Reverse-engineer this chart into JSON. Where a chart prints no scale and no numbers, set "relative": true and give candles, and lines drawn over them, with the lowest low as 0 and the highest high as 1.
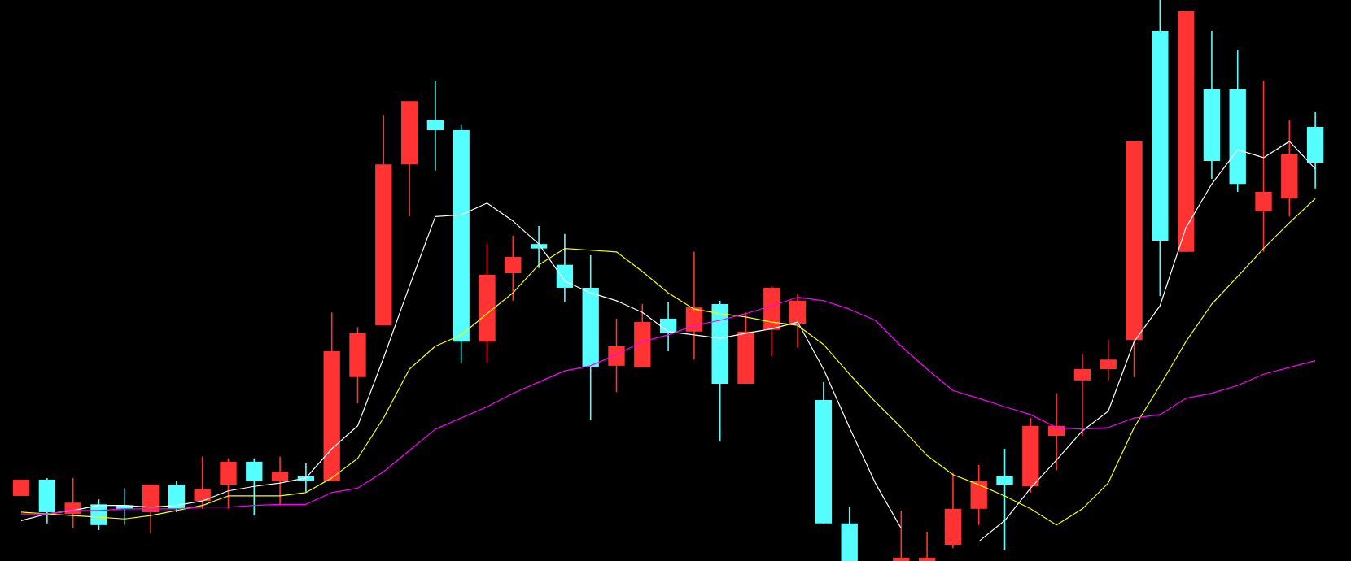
{
  "chart_data": {
    "type": "candlestick",
    "relative": true,
    "categories": [
      null,
      null,
      null,
      null,
      null,
      null,
      null,
      null,
      null,
      null,
      null,
      null,
      null,
      null,
      null,
      null,
      null,
      null,
      null,
      null,
      null,
      null,
      null,
      null,
      null,
      null,
      null,
      null,
      null,
      null,
      null,
      null,
      null,
      null,
      null,
      null,
      null,
      null,
      null,
      null,
      null,
      null,
      null,
      null,
      null,
      null,
      null,
      null,
      null,
      null,
      null
    ],
    "ohlc": [
      [
        0.116,
        0.145,
        0.116,
        0.145
      ],
      [
        0.145,
        0.148,
        0.067,
        0.087
      ],
      [
        0.084,
        0.148,
        0.058,
        0.104
      ],
      [
        0.101,
        0.11,
        0.055,
        0.064
      ],
      [
        0.099,
        0.13,
        0.064,
        0.093
      ],
      [
        0.087,
        0.136,
        0.049,
        0.136
      ],
      [
        0.136,
        0.142,
        0.087,
        0.093
      ],
      [
        0.107,
        0.186,
        0.093,
        0.128
      ],
      [
        0.136,
        0.183,
        0.093,
        0.177
      ],
      [
        0.177,
        0.183,
        0.081,
        0.142
      ],
      [
        0.142,
        0.186,
        0.101,
        0.159
      ],
      [
        0.151,
        0.174,
        0.122,
        0.142
      ],
      [
        0.142,
        0.443,
        0.142,
        0.374
      ],
      [
        0.328,
        0.417,
        0.281,
        0.406
      ],
      [
        0.42,
        0.794,
        0.42,
        0.707
      ],
      [
        0.707,
        0.82,
        0.614,
        0.82
      ],
      [
        0.786,
        0.855,
        0.696,
        0.768
      ],
      [
        0.768,
        0.777,
        0.354,
        0.391
      ],
      [
        0.391,
        0.565,
        0.354,
        0.51
      ],
      [
        0.513,
        0.58,
        0.464,
        0.542
      ],
      [
        0.565,
        0.597,
        0.522,
        0.557
      ],
      [
        0.528,
        0.583,
        0.461,
        0.487
      ],
      [
        0.487,
        0.545,
        0.252,
        0.345
      ],
      [
        0.348,
        0.432,
        0.301,
        0.383
      ],
      [
        0.345,
        0.458,
        0.345,
        0.426
      ],
      [
        0.432,
        0.461,
        0.374,
        0.406
      ],
      [
        0.409,
        0.551,
        0.359,
        0.452
      ],
      [
        0.458,
        0.464,
        0.214,
        0.316
      ],
      [
        0.316,
        0.443,
        0.316,
        0.409
      ],
      [
        0.412,
        0.49,
        0.365,
        0.487
      ],
      [
        0.423,
        0.475,
        0.38,
        0.464
      ],
      [
        0.287,
        0.319,
        0.067,
        0.067
      ],
      [
        0.067,
        0.096,
        0,
        0
      ],
      null,
      [
        0,
        0.09,
        0,
        0.006
      ],
      [
        0,
        0.052,
        0,
        0.006
      ],
      [
        0.029,
        0.157,
        0.023,
        0.093
      ],
      [
        0.093,
        0.171,
        0.064,
        0.142
      ],
      [
        0.151,
        0.2,
        0.02,
        0.136
      ],
      [
        0.133,
        0.255,
        0.122,
        0.241
      ],
      [
        0.223,
        0.299,
        0.162,
        0.241
      ],
      [
        0.322,
        0.368,
        0.223,
        0.342
      ],
      [
        0.342,
        0.394,
        0.322,
        0.359
      ],
      [
        0.394,
        0.748,
        0.328,
        0.748
      ],
      [
        0.945,
        1,
        0.472,
        0.571
      ],
      [
        0.551,
        0.98,
        0.551,
        0.98
      ],
      [
        0.841,
        0.945,
        0.681,
        0.713
      ],
      [
        0.841,
        0.91,
        0.658,
        0.672
      ],
      [
        0.623,
        0.855,
        0.551,
        0.658
      ],
      [
        0.646,
        0.786,
        0.614,
        0.725
      ],
      [
        0.774,
        0.8,
        0.664,
        0.71
      ]
    ],
    "colors": [
      "#ff3333",
      "#55ffff",
      "#ff3333",
      "#55ffff",
      "#55ffff",
      "#ff3333",
      "#55ffff",
      "#ff3333",
      "#ff3333",
      "#55ffff",
      "#ff3333",
      "#55ffff",
      "#ff3333",
      "#ff3333",
      "#ff3333",
      "#ff3333",
      "#55ffff",
      "#55ffff",
      "#ff3333",
      "#ff3333",
      "#55ffff",
      "#55ffff",
      "#55ffff",
      "#ff3333",
      "#ff3333",
      "#55ffff",
      "#ff3333",
      "#55ffff",
      "#ff3333",
      "#ff3333",
      "#ff3333",
      "#55ffff",
      "#55ffff",
      "#ff3333",
      "#ff3333",
      "#ff3333",
      "#ff3333",
      "#ff3333",
      "#55ffff",
      "#ff3333",
      "#ff3333",
      "#ff3333",
      "#ff3333",
      "#ff3333",
      "#55ffff",
      "#ff3333",
      "#55ffff",
      "#55ffff",
      "#ff3333",
      "#ff3333",
      "#55ffff"
    ],
    "series": [
      {
        "type": "line",
        "color": "#ffffff",
        "values": [
          0.072,
          0.084,
          0.09,
          0.099,
          0.099,
          0.096,
          0.099,
          0.107,
          0.125,
          0.133,
          0.139,
          0.148,
          0.2,
          0.241,
          0.362,
          0.49,
          0.614,
          0.617,
          0.638,
          0.606,
          0.565,
          0.499,
          0.478,
          0.464,
          0.443,
          0.409,
          0.403,
          0.397,
          0.406,
          0.414,
          0.426,
          0.342,
          0.238,
          0.139,
          0.058,
          null,
          null,
          0.035,
          0.072,
          0.13,
          0.18,
          0.232,
          0.267,
          0.391,
          0.455,
          0.594,
          0.672,
          0.733,
          0.719,
          0.748,
          0.699
        ]
      },
      {
        "type": "line",
        "color": "#ffff00",
        "values": [
          0.087,
          0.084,
          0.081,
          0.078,
          0.075,
          0.081,
          0.09,
          0.099,
          0.116,
          0.116,
          0.116,
          0.122,
          0.148,
          0.183,
          0.255,
          0.342,
          0.383,
          0.403,
          0.441,
          0.478,
          0.528,
          0.557,
          0.554,
          0.551,
          0.516,
          0.478,
          0.449,
          0.441,
          0.435,
          0.426,
          0.42,
          0.386,
          0.333,
          0.284,
          0.238,
          0.188,
          0.154,
          0.136,
          0.116,
          0.093,
          0.064,
          0.093,
          0.139,
          0.238,
          0.313,
          0.391,
          0.458,
          0.507,
          0.557,
          0.603,
          0.646
        ]
      },
      {
        "type": "line",
        "color": "#ff00ff",
        "values": [
          0.084,
          0.084,
          0.09,
          0.09,
          0.093,
          0.093,
          0.093,
          0.096,
          0.096,
          0.099,
          0.101,
          0.101,
          0.122,
          0.13,
          0.159,
          0.197,
          0.235,
          0.255,
          0.275,
          0.299,
          0.319,
          0.339,
          0.348,
          0.368,
          0.391,
          0.403,
          0.42,
          0.429,
          0.441,
          0.455,
          0.47,
          0.464,
          0.449,
          0.429,
          0.383,
          0.342,
          0.304,
          0.29,
          0.275,
          0.261,
          0.238,
          0.235,
          0.238,
          0.255,
          0.261,
          0.29,
          0.299,
          0.313,
          0.333,
          0.345,
          0.357
        ]
      }
    ]
  }
}
